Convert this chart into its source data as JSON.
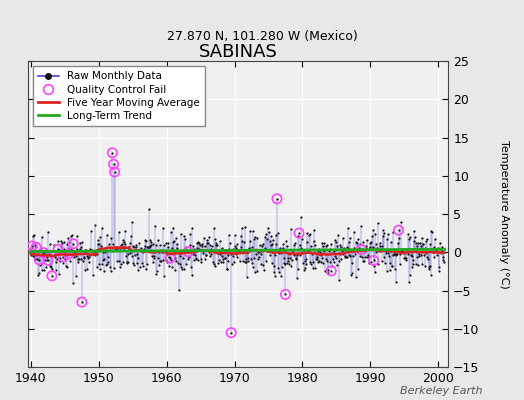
{
  "title": "SABINAS",
  "subtitle": "27.870 N, 101.280 W (Mexico)",
  "ylabel": "Temperature Anomaly (°C)",
  "xlim": [
    1939.5,
    2001.5
  ],
  "ylim": [
    -15,
    25
  ],
  "yticks": [
    -15,
    -10,
    -5,
    0,
    5,
    10,
    15,
    20,
    25
  ],
  "xticks": [
    1940,
    1950,
    1960,
    1970,
    1980,
    1990,
    2000
  ],
  "fig_bg_color": "#e8e8e8",
  "plot_bg_color": "#f0f0f0",
  "grid_color": "#cccccc",
  "raw_line_color": "#4444cc",
  "raw_dot_color": "#111111",
  "qc_fail_color": "#ff44ff",
  "moving_avg_color": "#dd2222",
  "trend_color": "#22aa22",
  "watermark": "Berkeley Earth",
  "seed": 42,
  "start_year": 1940,
  "end_year": 2001
}
